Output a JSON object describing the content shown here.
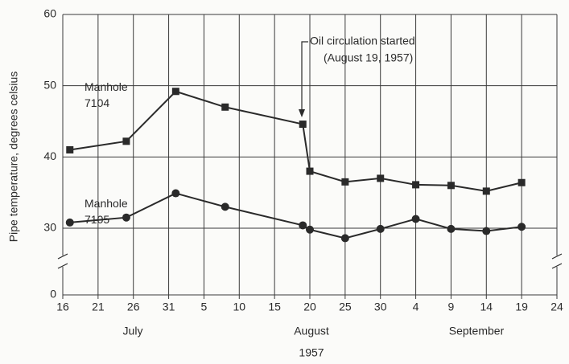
{
  "chart_data": {
    "type": "line",
    "y_label": "Pipe temperature, degrees celsius",
    "months": [
      "July",
      "August",
      "September"
    ],
    "year": "1957",
    "annotation": [
      "Oil circulation started",
      "(August 19, 1957)"
    ],
    "xlim": [
      16,
      86
    ],
    "xticks": [
      16,
      21,
      26,
      31,
      {
        "value": 36,
        "label": "5"
      },
      {
        "value": 41,
        "label": "10"
      },
      {
        "value": 46,
        "label": "15"
      },
      {
        "value": 51,
        "label": "20"
      },
      {
        "value": 56,
        "label": "25"
      },
      {
        "value": 61,
        "label": "30"
      },
      {
        "value": 66,
        "label": "4"
      },
      {
        "value": 71,
        "label": "9"
      },
      {
        "value": 76,
        "label": "14"
      },
      {
        "value": 81,
        "label": "19"
      },
      {
        "value": 86,
        "label": "24"
      }
    ],
    "ylim": [
      0,
      60
    ],
    "ybreak": [
      0,
      30
    ],
    "yticks": [
      0,
      30,
      40,
      50,
      60
    ],
    "grid": true,
    "x": [
      17,
      25,
      32,
      39,
      50,
      51,
      56,
      61,
      66,
      71,
      76,
      81
    ],
    "series": [
      {
        "name": "Manhole 7104",
        "color": "#2a2a2a",
        "marker": "square",
        "values": [
          41,
          42.2,
          49.2,
          47,
          44.6,
          38,
          36.5,
          37,
          36.1,
          36,
          35.2,
          36.4
        ]
      },
      {
        "name": "Manhole 7105",
        "color": "#2a2a2a",
        "marker": "circle",
        "values": [
          30.8,
          31.5,
          34.9,
          33,
          30.4,
          29.8,
          28.6,
          29.9,
          31.3,
          29.9,
          29.6,
          30.2
        ]
      }
    ]
  }
}
